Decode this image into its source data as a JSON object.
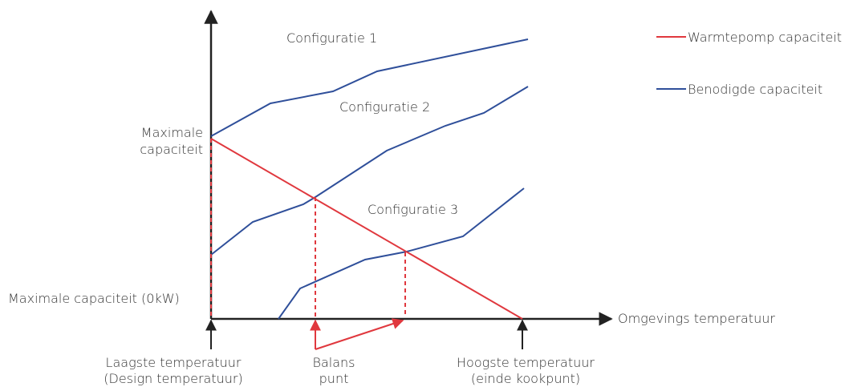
{
  "axes": {
    "y_label": [
      "Maximale",
      "capaciteit"
    ],
    "y_zero_label": "Maximale capaciteit (0kW)",
    "x_label": "Omgevings temperatuur"
  },
  "curves": [
    {
      "label": "Configuratie 1"
    },
    {
      "label": "Configuratie 2"
    },
    {
      "label": "Configuratie 3"
    }
  ],
  "legend": [
    {
      "label": "Warmtepomp capaciteit",
      "color": "#e0383e"
    },
    {
      "label": "Benodigde capaciteit",
      "color": "#2f4f9a"
    }
  ],
  "markers": [
    {
      "lines": [
        "Laagste temperatuur",
        "(Design temperatuur)"
      ]
    },
    {
      "lines": [
        "Balans",
        "punt"
      ]
    },
    {
      "lines": [
        "Hoogste temperatuur",
        "(einde kookpunt)"
      ]
    }
  ]
}
